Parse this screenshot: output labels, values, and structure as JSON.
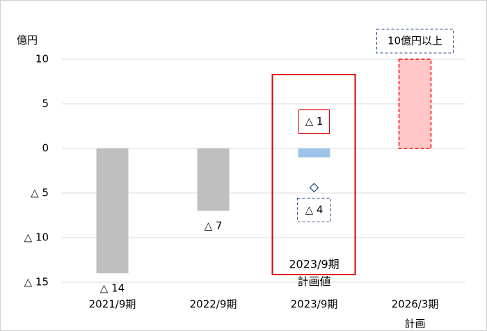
{
  "chart_data": {
    "type": "bar",
    "y_unit_label": "億円",
    "categories": [
      "2021/9期",
      "2022/9期",
      "2023/9期",
      "2026/3期"
    ],
    "category_notes": [
      null,
      null,
      null,
      "計画"
    ],
    "values": [
      -14,
      -7,
      -1,
      10
    ],
    "value_labels": [
      "△ 14",
      "△ 7",
      "△ 1",
      "10億円以上"
    ],
    "colors": [
      "#bfbfbf",
      "#bfbfbf",
      "#9dc3e6",
      "#ffc7c7"
    ],
    "border_colors": [
      null,
      null,
      null,
      "#ff0000"
    ],
    "marker": {
      "values": [
        null,
        null,
        -4.4,
        null
      ],
      "value_labels": [
        null,
        null,
        "△ 4",
        null
      ],
      "color": "#2f4f8f"
    },
    "highlight": {
      "category_index": 2,
      "lines": [
        "2023/9期",
        "計画値"
      ],
      "color": "#e00000"
    },
    "ylim": [
      -15,
      10
    ],
    "yticks": [
      10,
      5,
      0,
      {
        "value": -5,
        "label": "△ 5"
      },
      {
        "value": -10,
        "label": "△ 10"
      },
      {
        "value": -15,
        "label": "△ 15"
      }
    ],
    "grid": true
  }
}
